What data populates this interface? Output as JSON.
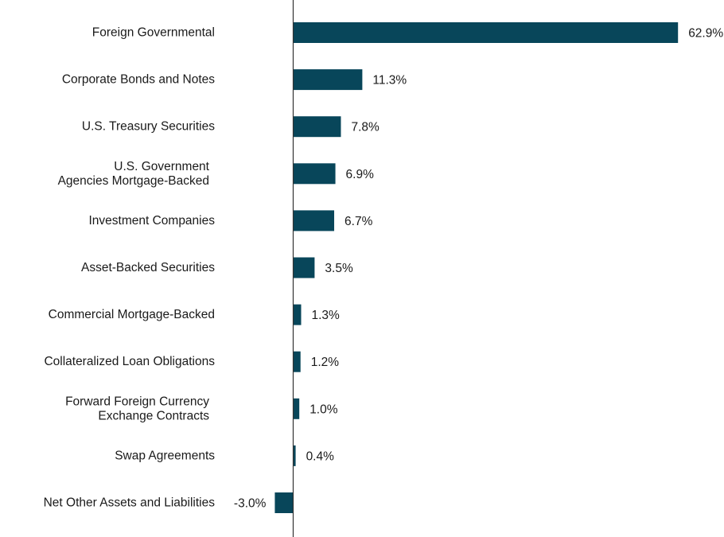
{
  "chart_data": {
    "type": "bar",
    "orientation": "horizontal",
    "title": "",
    "xlabel": "",
    "ylabel": "",
    "bar_color": "#08465a",
    "axis_color": "#333333",
    "categories": [
      [
        "Foreign Governmental"
      ],
      [
        "Corporate Bonds and Notes"
      ],
      [
        "U.S. Treasury Securities"
      ],
      [
        "U.S. Government",
        "Agencies Mortgage-Backed"
      ],
      [
        "Investment Companies"
      ],
      [
        "Asset-Backed Securities"
      ],
      [
        "Commercial Mortgage-Backed"
      ],
      [
        "Collateralized Loan Obligations"
      ],
      [
        "Forward Foreign Currency",
        "Exchange Contracts"
      ],
      [
        "Swap Agreements"
      ],
      [
        "Net Other Assets and Liabilities"
      ]
    ],
    "values": [
      62.9,
      11.3,
      7.8,
      6.9,
      6.7,
      3.5,
      1.3,
      1.2,
      1.0,
      0.4,
      -3.0
    ],
    "value_labels": [
      "62.9%",
      "11.3%",
      "7.8%",
      "6.9%",
      "6.7%",
      "3.5%",
      "1.3%",
      "1.2%",
      "1.0%",
      "0.4%",
      "-3.0%"
    ],
    "xlim": [
      -3.0,
      62.9
    ]
  }
}
